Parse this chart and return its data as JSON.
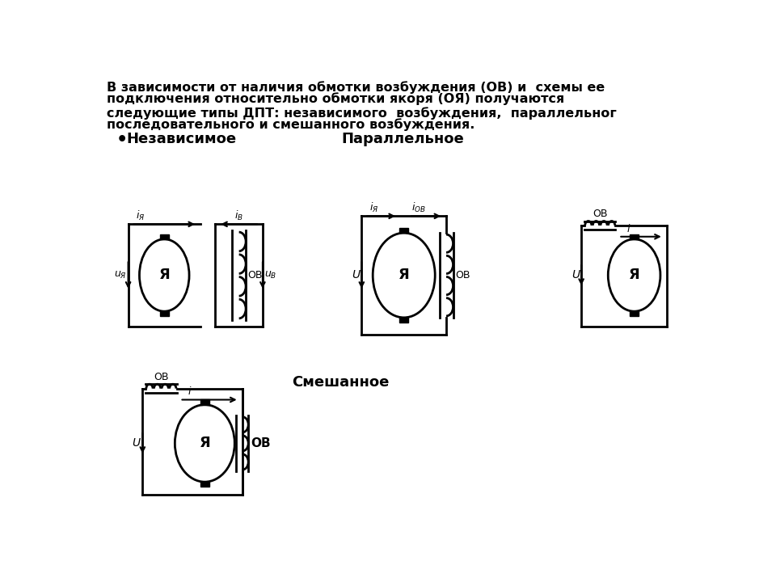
{
  "title_lines": [
    "В зависимости от наличия обмотки возбуждения (ОВ) и  схемы ее",
    "подключения относительно обмотки якоря (ОЯ) получаются",
    "",
    "следующие типы ДПТ: независимого  возбуждения,  параллельног",
    "последовательного и смешанного возбуждения."
  ],
  "label_nezav": "Независимое",
  "label_paral": "Параллельное",
  "label_smesh": "Смешанное",
  "label_ya": "Я",
  "label_ov": "ОВ",
  "bg_color": "#ffffff",
  "line_color": "#000000",
  "lw": 2.0,
  "lw_thin": 1.5
}
